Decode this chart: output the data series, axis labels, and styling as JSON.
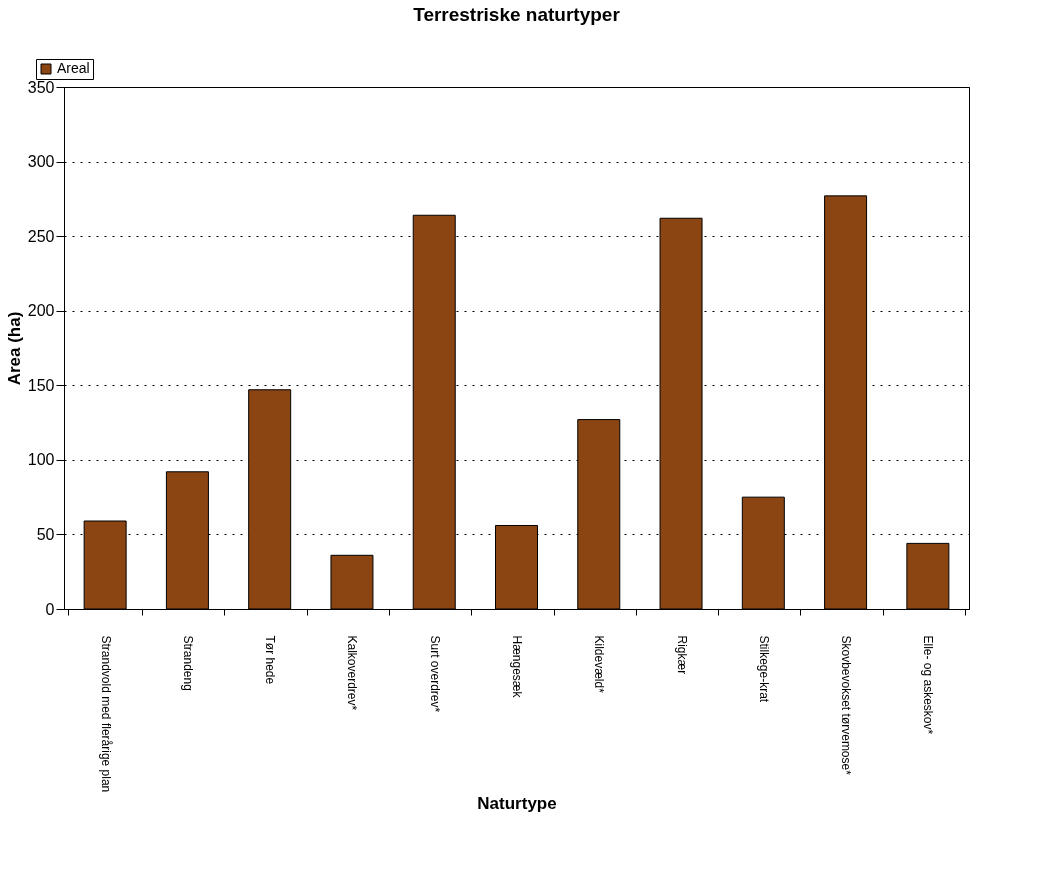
{
  "chart_data": {
    "type": "bar",
    "title": "Terrestriske naturtyper",
    "xlabel": "Naturtype",
    "ylabel": "Area (ha)",
    "categories": [
      "Strandvold med flerårige plan",
      "Strandeng",
      "Tør hede",
      "Kalkoverdrev*",
      "Surt overdrev*",
      "Hængesæk",
      "Kildevæld*",
      "Rigkær",
      "Stilkege-krat",
      "Skovbevokset tørvemose*",
      "Elle- og askeskov*"
    ],
    "series": [
      {
        "name": "Areal",
        "color": "#8b4513",
        "values": [
          59,
          92,
          147,
          36,
          264,
          56,
          127,
          262,
          75,
          277,
          44
        ]
      }
    ],
    "ylim": [
      0,
      350
    ],
    "yticks": [
      0,
      50,
      100,
      150,
      200,
      250,
      300,
      350
    ],
    "grid": "y",
    "legend": "top left"
  }
}
